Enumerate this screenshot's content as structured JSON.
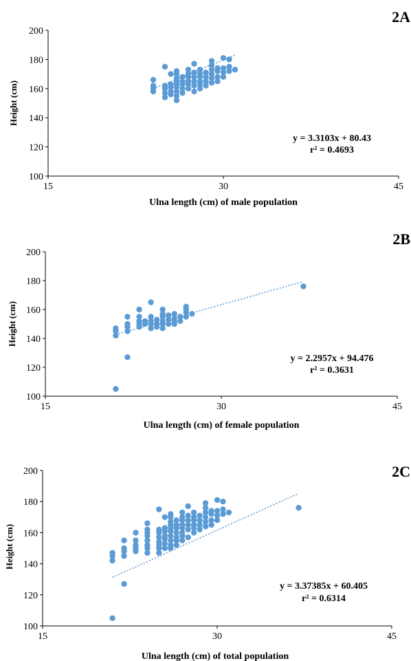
{
  "chart_data": [
    {
      "type": "scatter",
      "panel_label": "2A",
      "xlabel": "Ulna length (cm) of male population",
      "ylabel": "Height (cm)",
      "xlim": [
        15,
        45
      ],
      "ylim": [
        100,
        200
      ],
      "xticks": [
        15,
        30,
        45
      ],
      "yticks": [
        100,
        120,
        140,
        160,
        180,
        200
      ],
      "trendline": {
        "slope": 3.3103,
        "intercept": 80.43,
        "x_range": [
          24,
          31
        ]
      },
      "equation": "y = 3.3103x + 80.43",
      "r2": "r² = 0.4693",
      "points": [
        [
          24,
          158
        ],
        [
          24,
          160
        ],
        [
          24,
          162
        ],
        [
          24,
          166
        ],
        [
          25,
          154
        ],
        [
          25,
          157
        ],
        [
          25,
          160
        ],
        [
          25,
          162
        ],
        [
          25,
          175
        ],
        [
          25.5,
          156
        ],
        [
          25.5,
          158
        ],
        [
          25.5,
          161
        ],
        [
          25.5,
          163
        ],
        [
          25.5,
          170
        ],
        [
          26,
          152
        ],
        [
          26,
          155
        ],
        [
          26,
          158
        ],
        [
          26,
          161
        ],
        [
          26,
          163
        ],
        [
          26,
          165
        ],
        [
          26,
          167
        ],
        [
          26,
          170
        ],
        [
          26,
          172
        ],
        [
          26.5,
          157
        ],
        [
          26.5,
          160
        ],
        [
          26.5,
          163
        ],
        [
          26.5,
          165
        ],
        [
          26.5,
          168
        ],
        [
          27,
          160
        ],
        [
          27,
          163
        ],
        [
          27,
          165
        ],
        [
          27,
          168
        ],
        [
          27,
          170
        ],
        [
          27,
          173
        ],
        [
          27.5,
          158
        ],
        [
          27.5,
          162
        ],
        [
          27.5,
          165
        ],
        [
          27.5,
          168
        ],
        [
          27.5,
          171
        ],
        [
          27.5,
          177
        ],
        [
          28,
          160
        ],
        [
          28,
          163
        ],
        [
          28,
          165
        ],
        [
          28,
          168
        ],
        [
          28,
          170
        ],
        [
          28,
          173
        ],
        [
          28.5,
          162
        ],
        [
          28.5,
          165
        ],
        [
          28.5,
          168
        ],
        [
          28.5,
          171
        ],
        [
          29,
          164
        ],
        [
          29,
          167
        ],
        [
          29,
          170
        ],
        [
          29,
          173
        ],
        [
          29,
          176
        ],
        [
          29,
          179
        ],
        [
          29.5,
          165
        ],
        [
          29.5,
          168
        ],
        [
          29.5,
          172
        ],
        [
          29.5,
          174
        ],
        [
          30,
          168
        ],
        [
          30,
          171
        ],
        [
          30,
          174
        ],
        [
          30,
          181
        ],
        [
          30.5,
          172
        ],
        [
          30.5,
          175
        ],
        [
          30.5,
          180
        ],
        [
          31,
          173
        ]
      ]
    },
    {
      "type": "scatter",
      "panel_label": "2B",
      "xlabel": "Ulna length (cm) of female population",
      "ylabel": "Height (cm)",
      "xlim": [
        15,
        45
      ],
      "ylim": [
        100,
        200
      ],
      "xticks": [
        15,
        30,
        45
      ],
      "yticks": [
        100,
        120,
        140,
        160,
        180,
        200
      ],
      "trendline": {
        "slope": 2.2957,
        "intercept": 94.476,
        "x_range": [
          21,
          37
        ]
      },
      "equation": "y = 2.2957x + 94.476",
      "r2": "r² = 0.3631",
      "points": [
        [
          21,
          105
        ],
        [
          21,
          142
        ],
        [
          21,
          145
        ],
        [
          21,
          147
        ],
        [
          22,
          127
        ],
        [
          22,
          145
        ],
        [
          22,
          148
        ],
        [
          22,
          150
        ],
        [
          22,
          155
        ],
        [
          23,
          148
        ],
        [
          23,
          150
        ],
        [
          23,
          152
        ],
        [
          23,
          155
        ],
        [
          23,
          160
        ],
        [
          23.5,
          150
        ],
        [
          23.5,
          152
        ],
        [
          24,
          147
        ],
        [
          24,
          150
        ],
        [
          24,
          152
        ],
        [
          24,
          155
        ],
        [
          24,
          165
        ],
        [
          24.5,
          148
        ],
        [
          24.5,
          150
        ],
        [
          24.5,
          153
        ],
        [
          25,
          147
        ],
        [
          25,
          150
        ],
        [
          25,
          152
        ],
        [
          25,
          155
        ],
        [
          25,
          157
        ],
        [
          25,
          160
        ],
        [
          25.5,
          150
        ],
        [
          25.5,
          153
        ],
        [
          25.5,
          156
        ],
        [
          26,
          150
        ],
        [
          26,
          152
        ],
        [
          26,
          154
        ],
        [
          26,
          157
        ],
        [
          26.5,
          152
        ],
        [
          26.5,
          155
        ],
        [
          27,
          155
        ],
        [
          27,
          158
        ],
        [
          27,
          160
        ],
        [
          27,
          162
        ],
        [
          27.5,
          157
        ],
        [
          37,
          176
        ]
      ]
    },
    {
      "type": "scatter",
      "panel_label": "2C",
      "xlabel": "Ulna length (cm) of total population",
      "ylabel": "Height (cm)",
      "xlim": [
        15,
        45
      ],
      "ylim": [
        100,
        200
      ],
      "xticks": [
        15,
        30,
        45
      ],
      "yticks": [
        100,
        120,
        140,
        160,
        180,
        200
      ],
      "trendline": {
        "slope": 3.37385,
        "intercept": 60.405,
        "x_range": [
          21,
          37
        ]
      },
      "equation": "y = 3.37385x + 60.405",
      "r2": "r² = 0.6314",
      "points": [
        [
          21,
          105
        ],
        [
          21,
          142
        ],
        [
          21,
          145
        ],
        [
          21,
          147
        ],
        [
          22,
          127
        ],
        [
          22,
          145
        ],
        [
          22,
          148
        ],
        [
          22,
          150
        ],
        [
          22,
          155
        ],
        [
          23,
          148
        ],
        [
          23,
          150
        ],
        [
          23,
          152
        ],
        [
          23,
          155
        ],
        [
          23,
          160
        ],
        [
          24,
          147
        ],
        [
          24,
          150
        ],
        [
          24,
          152
        ],
        [
          24,
          155
        ],
        [
          24,
          158
        ],
        [
          24,
          160
        ],
        [
          24,
          162
        ],
        [
          24,
          166
        ],
        [
          25,
          147
        ],
        [
          25,
          150
        ],
        [
          25,
          152
        ],
        [
          25,
          154
        ],
        [
          25,
          157
        ],
        [
          25,
          160
        ],
        [
          25,
          162
        ],
        [
          25,
          175
        ],
        [
          25.5,
          150
        ],
        [
          25.5,
          153
        ],
        [
          25.5,
          156
        ],
        [
          25.5,
          158
        ],
        [
          25.5,
          161
        ],
        [
          25.5,
          163
        ],
        [
          25.5,
          170
        ],
        [
          26,
          150
        ],
        [
          26,
          152
        ],
        [
          26,
          155
        ],
        [
          26,
          158
        ],
        [
          26,
          161
        ],
        [
          26,
          163
        ],
        [
          26,
          165
        ],
        [
          26,
          167
        ],
        [
          26,
          170
        ],
        [
          26,
          172
        ],
        [
          26.5,
          152
        ],
        [
          26.5,
          155
        ],
        [
          26.5,
          157
        ],
        [
          26.5,
          160
        ],
        [
          26.5,
          163
        ],
        [
          26.5,
          165
        ],
        [
          26.5,
          168
        ],
        [
          27,
          155
        ],
        [
          27,
          158
        ],
        [
          27,
          160
        ],
        [
          27,
          163
        ],
        [
          27,
          165
        ],
        [
          27,
          168
        ],
        [
          27,
          170
        ],
        [
          27,
          173
        ],
        [
          27.5,
          157
        ],
        [
          27.5,
          162
        ],
        [
          27.5,
          165
        ],
        [
          27.5,
          168
        ],
        [
          27.5,
          171
        ],
        [
          27.5,
          177
        ],
        [
          28,
          160
        ],
        [
          28,
          163
        ],
        [
          28,
          165
        ],
        [
          28,
          168
        ],
        [
          28,
          170
        ],
        [
          28,
          173
        ],
        [
          28.5,
          162
        ],
        [
          28.5,
          165
        ],
        [
          28.5,
          168
        ],
        [
          28.5,
          171
        ],
        [
          29,
          164
        ],
        [
          29,
          167
        ],
        [
          29,
          170
        ],
        [
          29,
          173
        ],
        [
          29,
          176
        ],
        [
          29,
          179
        ],
        [
          29.5,
          165
        ],
        [
          29.5,
          168
        ],
        [
          29.5,
          172
        ],
        [
          29.5,
          174
        ],
        [
          30,
          168
        ],
        [
          30,
          171
        ],
        [
          30,
          174
        ],
        [
          30,
          181
        ],
        [
          30.5,
          172
        ],
        [
          30.5,
          175
        ],
        [
          30.5,
          180
        ],
        [
          31,
          173
        ],
        [
          37,
          176
        ]
      ]
    }
  ]
}
